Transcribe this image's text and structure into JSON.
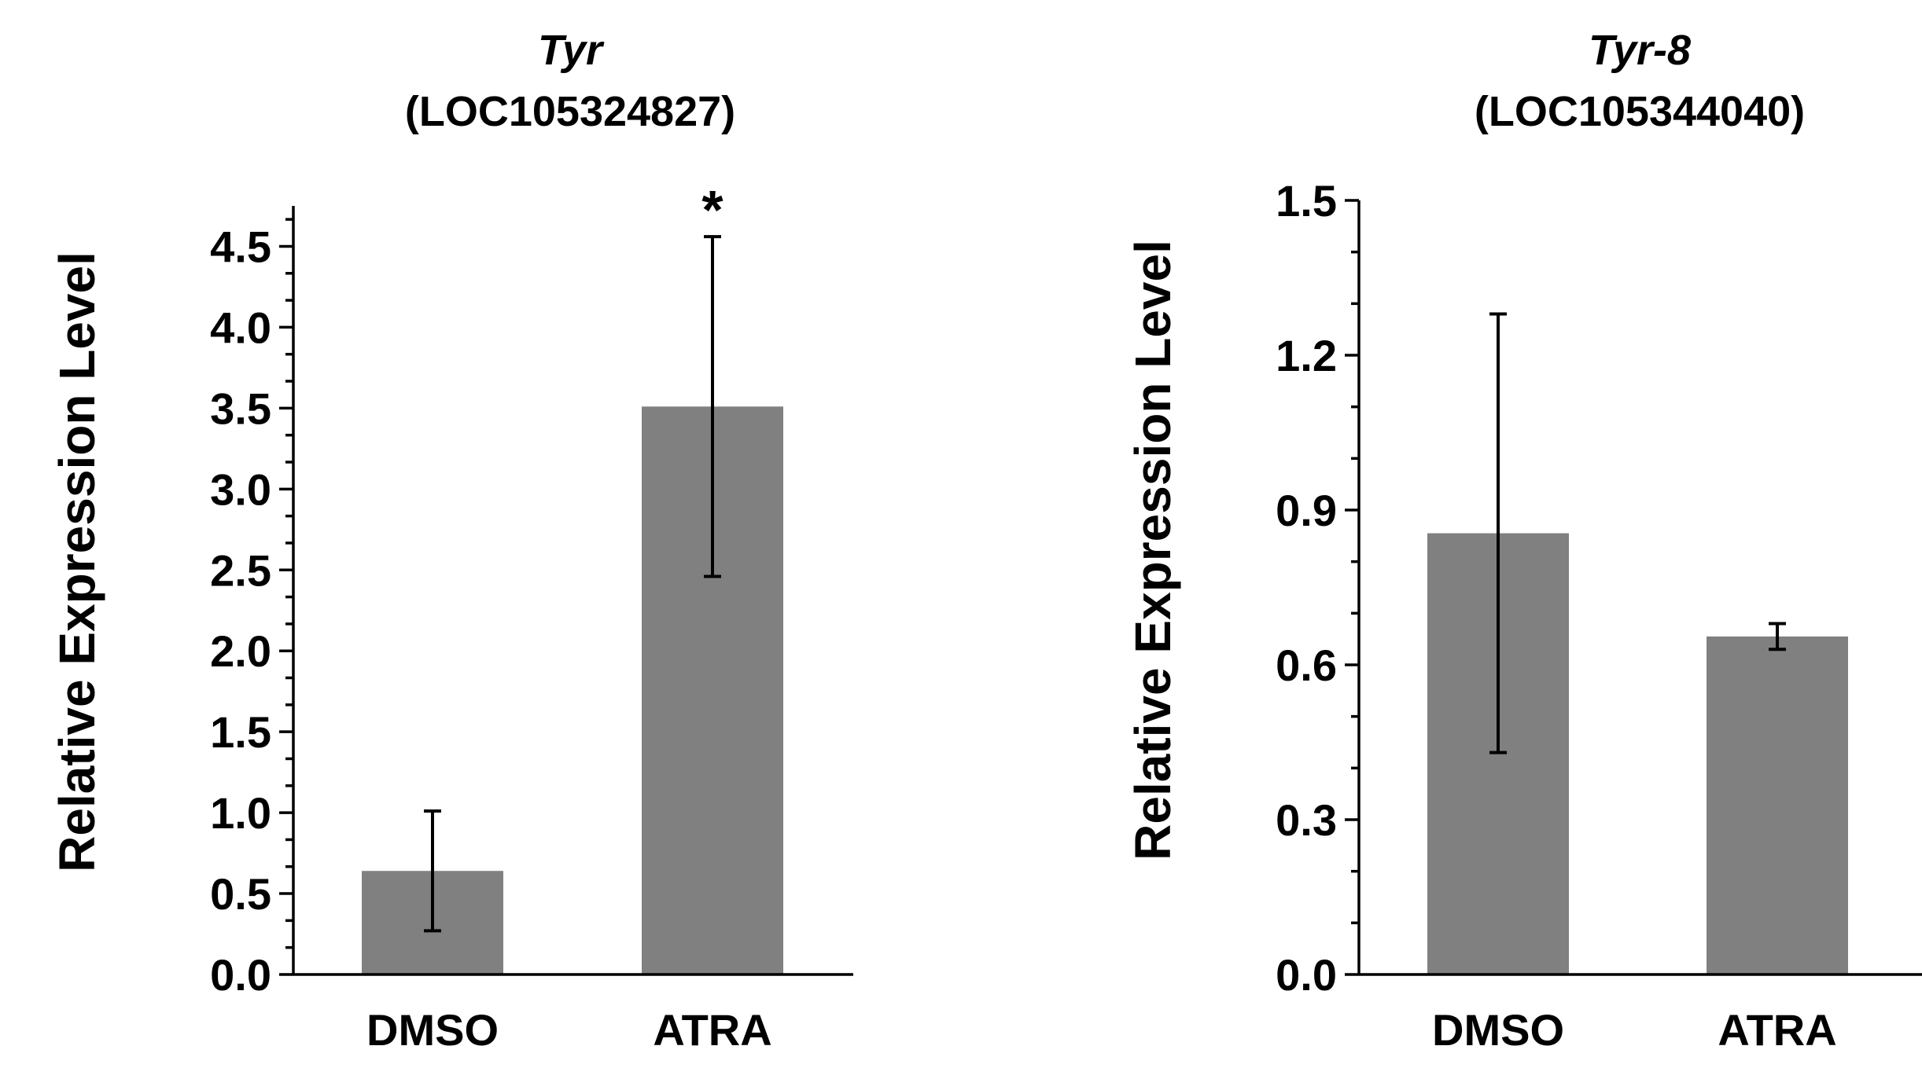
{
  "chart_data": [
    {
      "type": "bar",
      "title_gene": "Tyr",
      "title_locus": "(LOC105324827)",
      "ylabel": "Relative Expression Level",
      "xlabel": "",
      "categories": [
        "DMSO",
        "ATRA"
      ],
      "values": [
        0.64,
        3.51
      ],
      "errors": [
        0.37,
        1.05
      ],
      "significance": [
        "",
        "*"
      ],
      "ylim": [
        0,
        4.75
      ],
      "yticks": [
        0.0,
        0.5,
        1.0,
        1.5,
        2.0,
        2.5,
        3.0,
        3.5,
        4.0,
        4.5
      ],
      "ytick_labels": [
        "0.0",
        "0.5",
        "1.0",
        "1.5",
        "2.0",
        "2.5",
        "3.0",
        "3.5",
        "4.0",
        "4.5"
      ],
      "bar_color": "#808080"
    },
    {
      "type": "bar",
      "title_gene": "Tyr-8",
      "title_locus": "(LOC105344040)",
      "ylabel": "Relative Expression Level",
      "xlabel": "",
      "categories": [
        "DMSO",
        "ATRA"
      ],
      "values": [
        0.855,
        0.655
      ],
      "errors": [
        0.425,
        0.025
      ],
      "significance": [
        "",
        ""
      ],
      "ylim": [
        0,
        1.5
      ],
      "yticks": [
        0.0,
        0.3,
        0.6,
        0.9,
        1.2,
        1.5
      ],
      "ytick_labels": [
        "0.0",
        "0.3",
        "0.6",
        "0.9",
        "1.2",
        "1.5"
      ],
      "bar_color": "#808080"
    }
  ]
}
